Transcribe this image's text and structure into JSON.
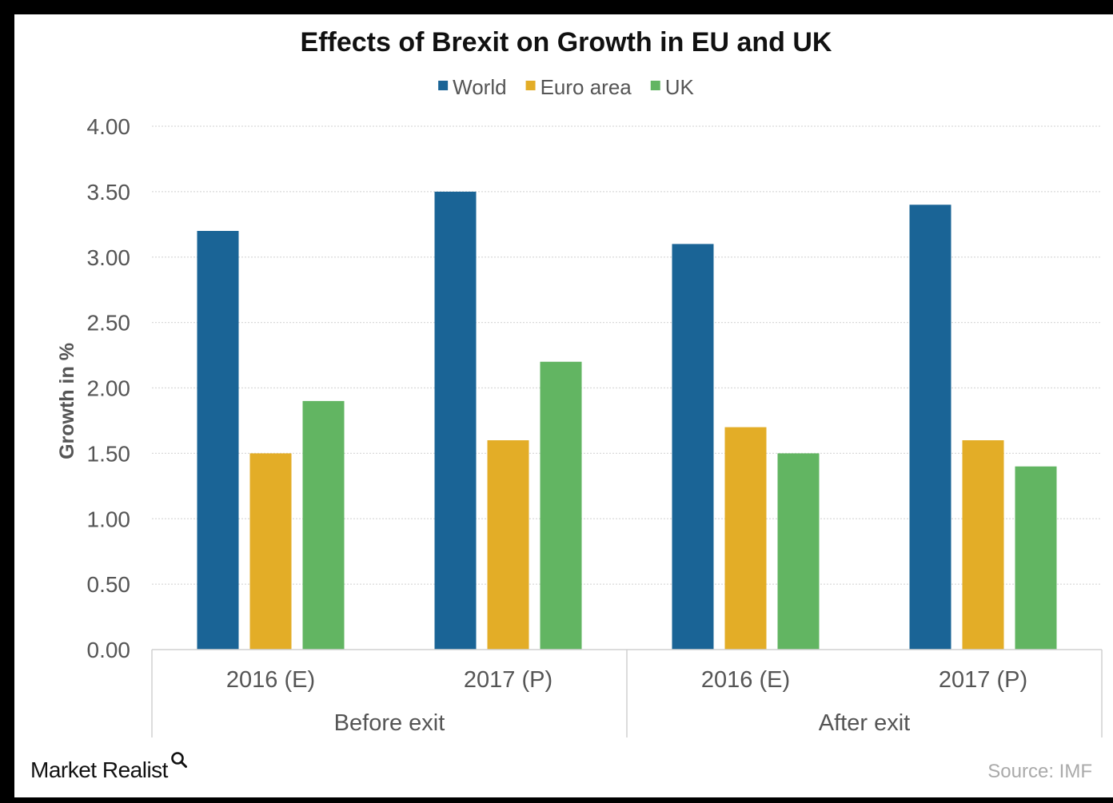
{
  "chart_data": {
    "type": "bar",
    "title": "Effects of Brexit on Growth in EU and UK",
    "ylabel": "Growth in %",
    "xlabel": "",
    "ylim": [
      0,
      4
    ],
    "yticks": [
      "0.00",
      "0.50",
      "1.00",
      "1.50",
      "2.00",
      "2.50",
      "3.00",
      "3.50",
      "4.00"
    ],
    "grid": true,
    "legend_position": "top-center",
    "categories": [
      "2016 (E)",
      "2017 (P)",
      "2016 (E)",
      "2017 (P)"
    ],
    "groups": [
      {
        "label": "Before exit",
        "span": 2
      },
      {
        "label": "After exit",
        "span": 2
      }
    ],
    "series": [
      {
        "name": "World",
        "color": "#1a6496",
        "values": [
          3.2,
          3.5,
          3.1,
          3.4
        ]
      },
      {
        "name": "Euro area",
        "color": "#e3ad27",
        "values": [
          1.5,
          1.6,
          1.7,
          1.6
        ]
      },
      {
        "name": "UK",
        "color": "#62b562",
        "values": [
          1.9,
          2.2,
          1.5,
          1.4
        ]
      }
    ]
  },
  "footer": {
    "brand": "Market Realist",
    "brand_icon": "magnifier-icon",
    "source": "Source: IMF"
  }
}
